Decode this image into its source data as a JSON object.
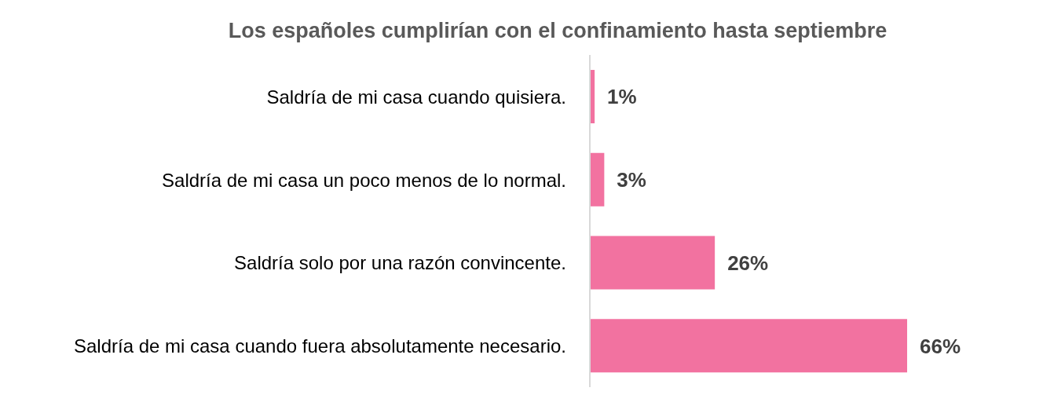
{
  "chart_data": {
    "type": "bar",
    "orientation": "horizontal",
    "title": "Los españoles cumplirían con el confinamiento hasta septiembre",
    "categories": [
      "Saldría de mi casa cuando quisiera.",
      "Saldría de mi casa un poco menos de lo normal.",
      "Saldría solo por una razón convincente.",
      "Saldría de mi casa cuando fuera absolutamente necesario."
    ],
    "values": [
      1,
      3,
      26,
      66
    ],
    "color": "#f272a0",
    "value_labels": [
      "1%",
      "3%",
      "26%",
      "66%"
    ]
  }
}
